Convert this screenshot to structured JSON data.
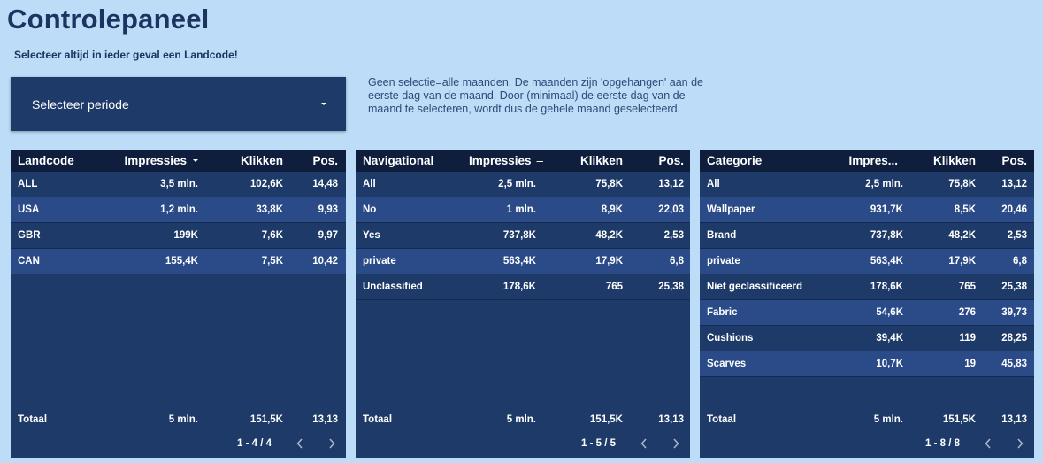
{
  "header": {
    "title": "Controlepaneel",
    "subtitle": "Selecteer altijd in ieder geval een Landcode!"
  },
  "period_select": {
    "label": "Selecteer periode"
  },
  "note": "Geen selectie=alle maanden. De maanden zijn 'opgehangen' aan de eerste dag van de maand. Door (minimaal) de eerste dag van de maand te selecteren, wordt dus de gehele maand geselecteerd.",
  "tables": [
    {
      "headers": [
        "Landcode",
        "Impressies",
        "Klikken",
        "Pos."
      ],
      "sort_column": 1,
      "rows": [
        [
          "ALL",
          "3,5 mln.",
          "102,6K",
          "14,48"
        ],
        [
          "USA",
          "1,2 mln.",
          "33,8K",
          "9,93"
        ],
        [
          "GBR",
          "199K",
          "7,6K",
          "9,97"
        ],
        [
          "CAN",
          "155,4K",
          "7,5K",
          "10,42"
        ]
      ],
      "total": [
        "Totaal",
        "5 mln.",
        "151,5K",
        "13,13"
      ],
      "pager": "1 - 4 / 4"
    },
    {
      "headers": [
        "Navigational",
        "Impressies",
        "Klikken",
        "Pos."
      ],
      "sort_column": 1,
      "rows": [
        [
          "All",
          "2,5 mln.",
          "75,8K",
          "13,12"
        ],
        [
          "No",
          "1 mln.",
          "8,9K",
          "22,03"
        ],
        [
          "Yes",
          "737,8K",
          "48,2K",
          "2,53"
        ],
        [
          "private",
          "563,4K",
          "17,9K",
          "6,8"
        ],
        [
          "Unclassified",
          "178,6K",
          "765",
          "25,38"
        ]
      ],
      "total": [
        "Totaal",
        "5 mln.",
        "151,5K",
        "13,13"
      ],
      "pager": "1 - 5 / 5"
    },
    {
      "headers": [
        "Categorie",
        "Impres...",
        "Klikken",
        "Pos."
      ],
      "sort_column": -1,
      "rows": [
        [
          "All",
          "2,5 mln.",
          "75,8K",
          "13,12"
        ],
        [
          "Wallpaper",
          "931,7K",
          "8,5K",
          "20,46"
        ],
        [
          "Brand",
          "737,8K",
          "48,2K",
          "2,53"
        ],
        [
          "private",
          "563,4K",
          "17,9K",
          "6,8"
        ],
        [
          "Niet geclassificeerd",
          "178,6K",
          "765",
          "25,38"
        ],
        [
          "Fabric",
          "54,6K",
          "276",
          "39,73"
        ],
        [
          "Cushions",
          "39,4K",
          "119",
          "28,25"
        ],
        [
          "Scarves",
          "10,7K",
          "19",
          "45,83"
        ]
      ],
      "total": [
        "Totaal",
        "5 mln.",
        "151,5K",
        "13,13"
      ],
      "pager": "1 - 8 / 8"
    }
  ],
  "icons": {
    "period_dropdown": "caret-down-icon",
    "pager_prev": "chevron-left-icon",
    "pager_next": "chevron-right-icon"
  }
}
